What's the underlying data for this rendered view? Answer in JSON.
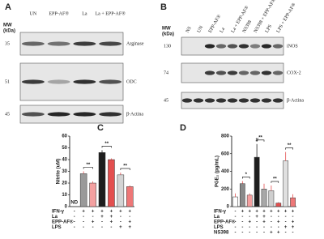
{
  "blot_a": {
    "label": "A",
    "mw_header": [
      "MW",
      "(kDa)"
    ],
    "lanes": [
      "UN",
      "EPP-AF®",
      "La",
      "La + EPP-AF®"
    ],
    "rows": [
      {
        "mw": "35",
        "name": "Arginase"
      },
      {
        "mw": "51",
        "name": "ODC"
      },
      {
        "mw": "45",
        "name": "β-Actina"
      }
    ]
  },
  "blot_b": {
    "label": "B",
    "mw_header": [
      "MW",
      "(kDa)"
    ],
    "lanes": [
      "NS",
      "UN",
      "EPP-AF®",
      "La",
      "La + EPP-AF®",
      "NS398",
      "NS398 + EPP-AF®",
      "LPS",
      "LPS + EPP-AF®"
    ],
    "rows": [
      {
        "mw": "130",
        "name": "iNOS"
      },
      {
        "mw": "74",
        "name": "COX-2"
      },
      {
        "mw": "45",
        "name": "β-Actina"
      }
    ]
  },
  "chart_data": [
    {
      "type": "bar",
      "label": "C",
      "ylabel": "Nitrite (uM)",
      "values": [
        0,
        28,
        20,
        46,
        40,
        27,
        17
      ],
      "errors": [
        0,
        2,
        1.5,
        2,
        1,
        2,
        1
      ],
      "colors": [
        "#ffffff",
        "#9a9a9a",
        "#f4a0a0",
        "#1e1e1e",
        "#e34f4f",
        "#d4d4d4",
        "#ee7777"
      ],
      "ylim": [
        0,
        60
      ],
      "yticks": [
        0,
        10,
        20,
        30,
        40,
        50,
        60
      ],
      "annotations": [
        "ND",
        "**",
        "**",
        "**"
      ],
      "conditions": [
        {
          "name": "IFN-γ",
          "signs": [
            "-",
            "+",
            "+",
            "+",
            "+",
            "+",
            "+"
          ]
        },
        {
          "name": "La",
          "signs": [
            "-",
            "-",
            "-",
            "+",
            "+",
            "-",
            "-"
          ]
        },
        {
          "name": "EPP-AF®",
          "signs": [
            "-",
            "-",
            "+",
            "-",
            "+",
            "-",
            "+"
          ]
        },
        {
          "name": "LPS",
          "signs": [
            "-",
            "-",
            "-",
            "-",
            "-",
            "+",
            "+"
          ]
        }
      ]
    },
    {
      "type": "bar",
      "label": "D",
      "ylabel": "PGE₂ (pg/mL)",
      "values": [
        110,
        260,
        130,
        560,
        200,
        180,
        40,
        520,
        100
      ],
      "errors": [
        40,
        30,
        20,
        150,
        60,
        60,
        10,
        100,
        40
      ],
      "colors": [
        "#ffffff",
        "#8a8a8a",
        "#f4a0a0",
        "#1e1e1e",
        "#a8a8a8",
        "#cfcfcf",
        "#e34f4f",
        "#e0e0e0",
        "#ee7777"
      ],
      "ylim": [
        0,
        800
      ],
      "yticks": [
        0,
        200,
        400,
        600,
        800
      ],
      "annotations": [
        "*",
        "**",
        "**",
        "**",
        "#"
      ],
      "conditions": [
        {
          "name": "IFN-γ",
          "signs": [
            "-",
            "+",
            "+",
            "+",
            "+",
            "+",
            "+",
            "+",
            "+"
          ]
        },
        {
          "name": "La",
          "signs": [
            "-",
            "-",
            "-",
            "+",
            "+",
            "-",
            "-",
            "-",
            "-"
          ]
        },
        {
          "name": "EPP-AF®",
          "signs": [
            "-",
            "-",
            "+",
            "-",
            "+",
            "-",
            "+",
            "-",
            "+"
          ]
        },
        {
          "name": "LPS",
          "signs": [
            "-",
            "-",
            "-",
            "-",
            "-",
            "-",
            "-",
            "+",
            "+"
          ]
        },
        {
          "name": "NS398",
          "signs": [
            "-",
            "-",
            "-",
            "-",
            "-",
            "+",
            "+",
            "-",
            "-"
          ]
        }
      ]
    }
  ]
}
